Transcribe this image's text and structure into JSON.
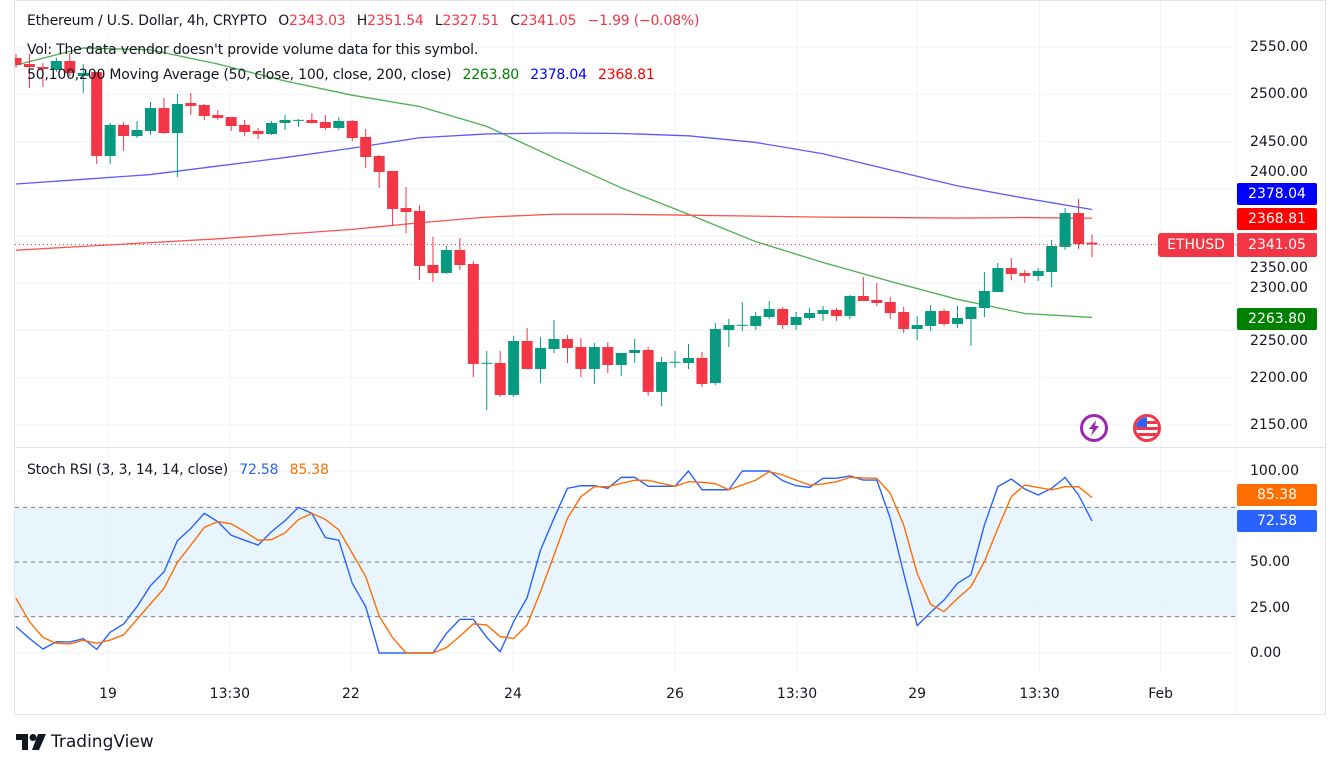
{
  "header": {
    "symbol_title": "Ethereum / U.S. Dollar, 4h, CRYPTO",
    "open_label": "O",
    "open": "2343.03",
    "high_label": "H",
    "high": "2351.54",
    "low_label": "L",
    "low": "2327.51",
    "close_label": "C",
    "close": "2341.05",
    "change": "−1.99 (−0.08%)",
    "volume_note": "Vol: The data vendor doesn't provide volume data for this symbol.",
    "ma_title": "50,100,200 Moving Average (50, close, 100, close, 200, close)",
    "ma50_value": "2263.80",
    "ma100_value": "2378.04",
    "ma200_value": "2368.81",
    "rsi_title": "Stoch RSI (3, 3, 14, 14, close)",
    "rsi_k_value": "72.58",
    "rsi_d_value": "85.38"
  },
  "price_badges": {
    "symbol": "ETHUSD",
    "last": "2341.05",
    "ma100": "2378.04",
    "ma200": "2368.81",
    "ma50": "2263.80",
    "rsi_d": "85.38",
    "rsi_k": "72.58"
  },
  "branding": {
    "name": "TradingView"
  },
  "colors": {
    "up": "#089981",
    "down": "#f23645",
    "ma50": "#008000",
    "ma100": "#0000ff",
    "ma200": "#ff0000",
    "rsi_k": "#2962ff",
    "rsi_d": "#ff6d00",
    "band": "#e3f2fd",
    "events_icon": "#9c27b0",
    "flag_icon": "#f23645"
  },
  "icons": [
    "lightning-event-icon",
    "us-flag-icon"
  ],
  "chart_data": [
    {
      "type": "candlestick",
      "interval": "4h",
      "y_ticks": [
        "2550.00",
        "2500.00",
        "2450.00",
        "2400.00",
        "2350.00",
        "2300.00",
        "2250.00",
        "2200.00",
        "2150.00"
      ],
      "ylim": [
        2150,
        2550
      ],
      "grid": true,
      "x_ticks": [
        {
          "label": "19",
          "at": 6.84
        },
        {
          "label": "13:30",
          "at": 15.9
        },
        {
          "label": "22",
          "at": 24.9
        },
        {
          "label": "24",
          "at": 36.95
        },
        {
          "label": "26",
          "at": 49
        },
        {
          "label": "13:30",
          "at": 58.07
        },
        {
          "label": "29",
          "at": 67
        },
        {
          "label": "13:30",
          "at": 76.1
        },
        {
          "label": "Feb",
          "at": 85.1
        }
      ],
      "candles_ohlc": [
        [
          2538.4,
          2542.6,
          2528.0,
          2531.0
        ],
        [
          2532.0,
          2542.6,
          2506.6,
          2528.8
        ],
        [
          2528.8,
          2533.0,
          2507.7,
          2526.7
        ],
        [
          2525.7,
          2538.4,
          2523.5,
          2535.2
        ],
        [
          2535.2,
          2543.6,
          2519.3,
          2522.5
        ],
        [
          2519.3,
          2532.0,
          2501.3,
          2522.5
        ],
        [
          2523.5,
          2523.5,
          2426.2,
          2434.7
        ],
        [
          2434.7,
          2469.6,
          2426.2,
          2467.5
        ],
        [
          2467.5,
          2470.6,
          2440.0,
          2455.8
        ],
        [
          2455.8,
          2471.7,
          2453.7,
          2462.2
        ],
        [
          2461.1,
          2491.8,
          2456.9,
          2485.4
        ],
        [
          2485.4,
          2496.0,
          2457.9,
          2459.0
        ],
        [
          2459.0,
          2500.3,
          2412.4,
          2489.7
        ],
        [
          2490.7,
          2501.3,
          2478.0,
          2487.6
        ],
        [
          2488.6,
          2489.7,
          2472.8,
          2477.0
        ],
        [
          2478.0,
          2483.3,
          2472.8,
          2474.9
        ],
        [
          2475.9,
          2476.0,
          2461.1,
          2466.4
        ],
        [
          2467.5,
          2472.8,
          2455.8,
          2460.1
        ],
        [
          2461.1,
          2464.3,
          2452.6,
          2457.9
        ],
        [
          2457.9,
          2471.7,
          2456.9,
          2469.6
        ],
        [
          2469.6,
          2478.0,
          2462.2,
          2472.8
        ],
        [
          2472.5,
          2473.8,
          2465.4,
          2472.9
        ],
        [
          2472.8,
          2480.2,
          2469.0,
          2469.6
        ],
        [
          2470.6,
          2478.0,
          2462.2,
          2464.3
        ],
        [
          2464.3,
          2475.9,
          2462.2,
          2471.7
        ],
        [
          2471.7,
          2472.8,
          2450.5,
          2453.7
        ],
        [
          2454.8,
          2463.2,
          2422.0,
          2433.6
        ],
        [
          2434.7,
          2435.7,
          2400.8,
          2417.7
        ],
        [
          2418.8,
          2418.8,
          2360.6,
          2378.6
        ],
        [
          2379.6,
          2401.8,
          2353.2,
          2375.4
        ],
        [
          2376.5,
          2382.8,
          2303.4,
          2318.3
        ],
        [
          2319.3,
          2349.1,
          2301.3,
          2310.8
        ],
        [
          2310.8,
          2339.4,
          2310.0,
          2335.2
        ],
        [
          2335.2,
          2347.9,
          2314.0,
          2319.3
        ],
        [
          2320.4,
          2323.5,
          2200.8,
          2214.6
        ],
        [
          2215.2,
          2228.3,
          2165.9,
          2215.8
        ],
        [
          2215.6,
          2228.3,
          2179.6,
          2181.8
        ],
        [
          2181.8,
          2244.2,
          2179.6,
          2238.9
        ],
        [
          2238.9,
          2252.6,
          2209.0,
          2209.3
        ],
        [
          2209.3,
          2243.1,
          2194.4,
          2231.5
        ],
        [
          2230.4,
          2261.1,
          2226.2,
          2241.0
        ],
        [
          2241.0,
          2245.2,
          2215.6,
          2231.5
        ],
        [
          2232.5,
          2242.0,
          2200.8,
          2209.3
        ],
        [
          2209.3,
          2236.8,
          2193.4,
          2232.5
        ],
        [
          2232.5,
          2237.8,
          2205.0,
          2213.5
        ],
        [
          2213.5,
          2226.2,
          2201.9,
          2226.2
        ],
        [
          2226.2,
          2241.0,
          2215.6,
          2229.4
        ],
        [
          2229.4,
          2232.5,
          2180.7,
          2185.0
        ],
        [
          2185.0,
          2222.0,
          2170.1,
          2216.7
        ],
        [
          2216.5,
          2228.3,
          2210.4,
          2216.9
        ],
        [
          2215.6,
          2235.7,
          2209.3,
          2220.9
        ],
        [
          2220.9,
          2227.3,
          2190.2,
          2193.4
        ],
        [
          2194.4,
          2257.9,
          2192.3,
          2251.6
        ],
        [
          2250.5,
          2262.2,
          2232.5,
          2255.8
        ],
        [
          2255.6,
          2280.2,
          2249.5,
          2256.0
        ],
        [
          2254.8,
          2269.6,
          2250.5,
          2265.3
        ],
        [
          2264.3,
          2281.2,
          2262.2,
          2272.8
        ],
        [
          2272.8,
          2274.9,
          2251.6,
          2255.8
        ],
        [
          2255.8,
          2269.6,
          2250.5,
          2264.3
        ],
        [
          2263.2,
          2273.8,
          2261.1,
          2268.5
        ],
        [
          2267.5,
          2275.9,
          2260.1,
          2271.7
        ],
        [
          2271.7,
          2273.8,
          2260.1,
          2265.3
        ],
        [
          2265.3,
          2287.6,
          2262.2,
          2286.5
        ],
        [
          2286.5,
          2306.6,
          2281.2,
          2281.2
        ],
        [
          2282.3,
          2300.3,
          2275.9,
          2279.1
        ],
        [
          2280.2,
          2285.5,
          2262.2,
          2268.5
        ],
        [
          2269.6,
          2274.9,
          2247.4,
          2251.6
        ],
        [
          2251.6,
          2265.3,
          2239.9,
          2255.8
        ],
        [
          2254.8,
          2277.0,
          2249.5,
          2270.6
        ],
        [
          2270.6,
          2272.8,
          2254.8,
          2256.9
        ],
        [
          2256.9,
          2275.9,
          2252.6,
          2263.2
        ],
        [
          2262.2,
          2274.9,
          2233.6,
          2274.9
        ],
        [
          2273.8,
          2311.9,
          2264.3,
          2291.8
        ],
        [
          2290.7,
          2321.4,
          2290.7,
          2316.1
        ],
        [
          2316.1,
          2326.7,
          2303.4,
          2309.8
        ],
        [
          2310.8,
          2314.0,
          2300.3,
          2307.7
        ],
        [
          2307.7,
          2316.1,
          2302.4,
          2313.0
        ],
        [
          2311.9,
          2345.8,
          2296.0,
          2339.4
        ],
        [
          2338.4,
          2379.6,
          2335.2,
          2374.3
        ],
        [
          2374.3,
          2389.2,
          2336.2,
          2341.5
        ],
        [
          2343.03,
          2351.54,
          2327.51,
          2341.05
        ]
      ],
      "moving_averages": {
        "sample_every_n_bars": 5,
        "ma50": [
          2531,
          2549,
          2547,
          2532,
          2514,
          2499,
          2487,
          2466,
          2433,
          2401,
          2373,
          2344,
          2322,
          2302,
          2283,
          2268,
          2263.8
        ],
        "ma100": [
          2405,
          2410,
          2415,
          2424,
          2433,
          2443,
          2454,
          2458,
          2459,
          2458.5,
          2456,
          2449,
          2437,
          2420,
          2403,
          2390,
          2378.04
        ],
        "ma200": [
          2335,
          2339,
          2343,
          2347,
          2352,
          2357,
          2364,
          2370,
          2373,
          2373,
          2372,
          2371,
          2370,
          2369.5,
          2369,
          2369.5,
          2368.81
        ]
      },
      "last_price": 2341.05
    },
    {
      "type": "line",
      "y_ticks": [
        "100.00",
        "85.38",
        "72.58",
        "50.00",
        "25.00",
        "0.00"
      ],
      "tick_values": [
        100,
        50,
        25,
        0
      ],
      "ylim": [
        0,
        100
      ],
      "levels": [
        80,
        50,
        20
      ],
      "band": [
        20,
        80
      ],
      "series": [
        {
          "key": "k",
          "values": [
            14.5,
            8,
            2.2,
            6.2,
            6,
            7.9,
            2,
            11.4,
            15.9,
            25.5,
            37,
            44.5,
            61.7,
            68.5,
            76.7,
            72.2,
            64.7,
            62,
            59.3,
            66.7,
            72.7,
            80,
            76.7,
            63.4,
            62,
            38.3,
            25.5,
            0,
            0,
            0,
            0,
            0,
            10.8,
            18.5,
            18.5,
            8.6,
            0.7,
            17.2,
            30.4,
            56.6,
            74,
            90.5,
            91.9,
            91.9,
            90.5,
            96.5,
            96.5,
            91.6,
            91.6,
            91.6,
            100,
            89.7,
            89.7,
            89.7,
            100,
            100,
            100,
            94.7,
            91.9,
            91,
            96,
            96,
            97.3,
            95,
            95,
            74,
            43.8,
            15,
            22.3,
            29.1,
            38.3,
            42.9,
            70.3,
            91.4,
            95.6,
            90.1,
            86.8,
            90.5,
            96.5,
            86.8,
            72.58
          ]
        },
        {
          "key": "d",
          "values": [
            30,
            17.2,
            8.6,
            5.3,
            5,
            7,
            5.3,
            7.1,
            10,
            18.5,
            27,
            35.5,
            49.8,
            59.3,
            69,
            72.2,
            71,
            66.7,
            62,
            62.3,
            66,
            73.3,
            76.7,
            73.4,
            67.6,
            54.8,
            42,
            20.3,
            8.4,
            0,
            0,
            0,
            3,
            9.2,
            16,
            15.4,
            9,
            8,
            15.4,
            33.7,
            53.8,
            74,
            85.9,
            91.4,
            91.4,
            93.2,
            94.9,
            94.9,
            93.2,
            91.6,
            94.1,
            93.8,
            93,
            89.7,
            92.3,
            95,
            99.6,
            97.8,
            95,
            92.3,
            92.9,
            94.1,
            96.5,
            96.2,
            96,
            87.7,
            70.3,
            43.8,
            26.7,
            22.7,
            30,
            36.4,
            50.2,
            68.5,
            85.9,
            92.3,
            91,
            89.6,
            91.4,
            91.4,
            85.38
          ]
        }
      ]
    }
  ]
}
